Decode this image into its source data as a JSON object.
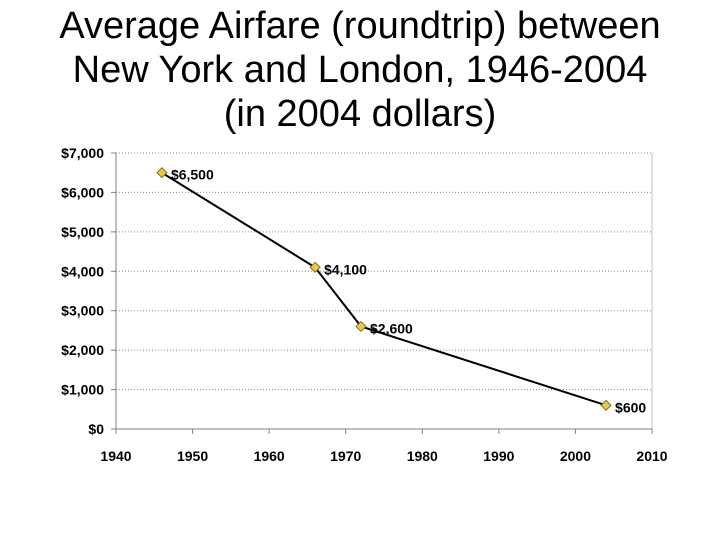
{
  "title": {
    "line1": "Average Airfare (roundtrip) between",
    "line2": "New York and London, 1946-2004",
    "line3": "(in 2004 dollars)"
  },
  "chart_data": {
    "type": "line",
    "title": "Average Airfare (roundtrip) between New York and London, 1946-2004 (in 2004 dollars)",
    "xlabel": "",
    "ylabel": "",
    "xlim": [
      1940,
      2010
    ],
    "ylim": [
      0,
      7000
    ],
    "x_ticks": [
      1940,
      1950,
      1960,
      1970,
      1980,
      1990,
      2000,
      2010
    ],
    "y_ticks": [
      0,
      1000,
      2000,
      3000,
      4000,
      5000,
      6000,
      7000
    ],
    "x_tick_labels": [
      "1940",
      "1950",
      "1960",
      "1970",
      "1980",
      "1990",
      "2000",
      "2010"
    ],
    "y_tick_labels": [
      "$0",
      "$1,000",
      "$2,000",
      "$3,000",
      "$4,000",
      "$5,000",
      "$6,000",
      "$7,000"
    ],
    "grid": "horizontal-dotted",
    "legend": "none",
    "series": [
      {
        "name": "Average airfare",
        "x": [
          1946,
          1966,
          1972,
          2004
        ],
        "y": [
          6500,
          4100,
          2600,
          600
        ],
        "labels": [
          "$6,500",
          "$4,100",
          "$2,600",
          "$600"
        ],
        "line_color": "#000000",
        "marker_color": "#e8c84a"
      }
    ]
  }
}
